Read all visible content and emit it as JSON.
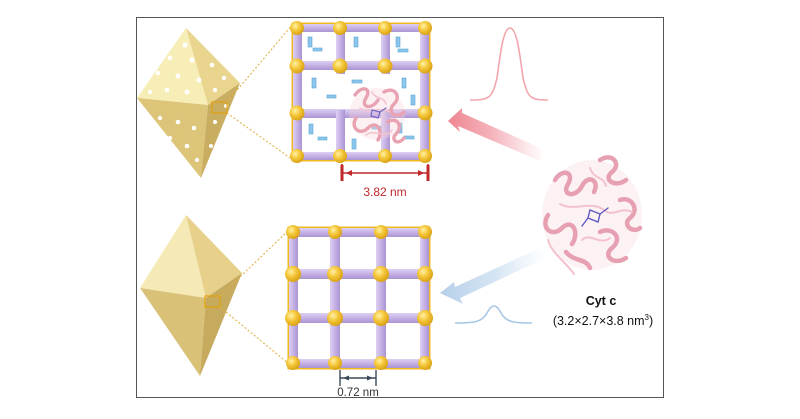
{
  "labels": {
    "top_pore_width": "3.82 nm",
    "bottom_pore_width": "0.72 nm",
    "protein_name": "Cyt c",
    "protein_dims_prefix": "(3.2×2.7×3.8 nm",
    "protein_dims_sup": "3",
    "protein_dims_suffix": ")"
  },
  "colors": {
    "frame": "#555555",
    "octahedron_light": "#f6eab0",
    "octahedron_mid": "#e7d48c",
    "octahedron_dark": "#cdb466",
    "node_gold": "#f2c237",
    "linker_purple": "#c7b3e6",
    "pore_ligand_blue": "#7fc0e8",
    "protein_pink": "#f0b8c4",
    "dimension_red": "#c0282a",
    "dimension_gray": "#3a4a5a",
    "top_curve": "#f3a6ac",
    "bottom_curve": "#a9c8e6",
    "zoom_lines": "#e2b24a"
  },
  "icons": {
    "defective_crystal": "octahedron-with-pores-icon",
    "intact_crystal": "octahedron-icon",
    "protein": "protein-ribbon-icon"
  }
}
